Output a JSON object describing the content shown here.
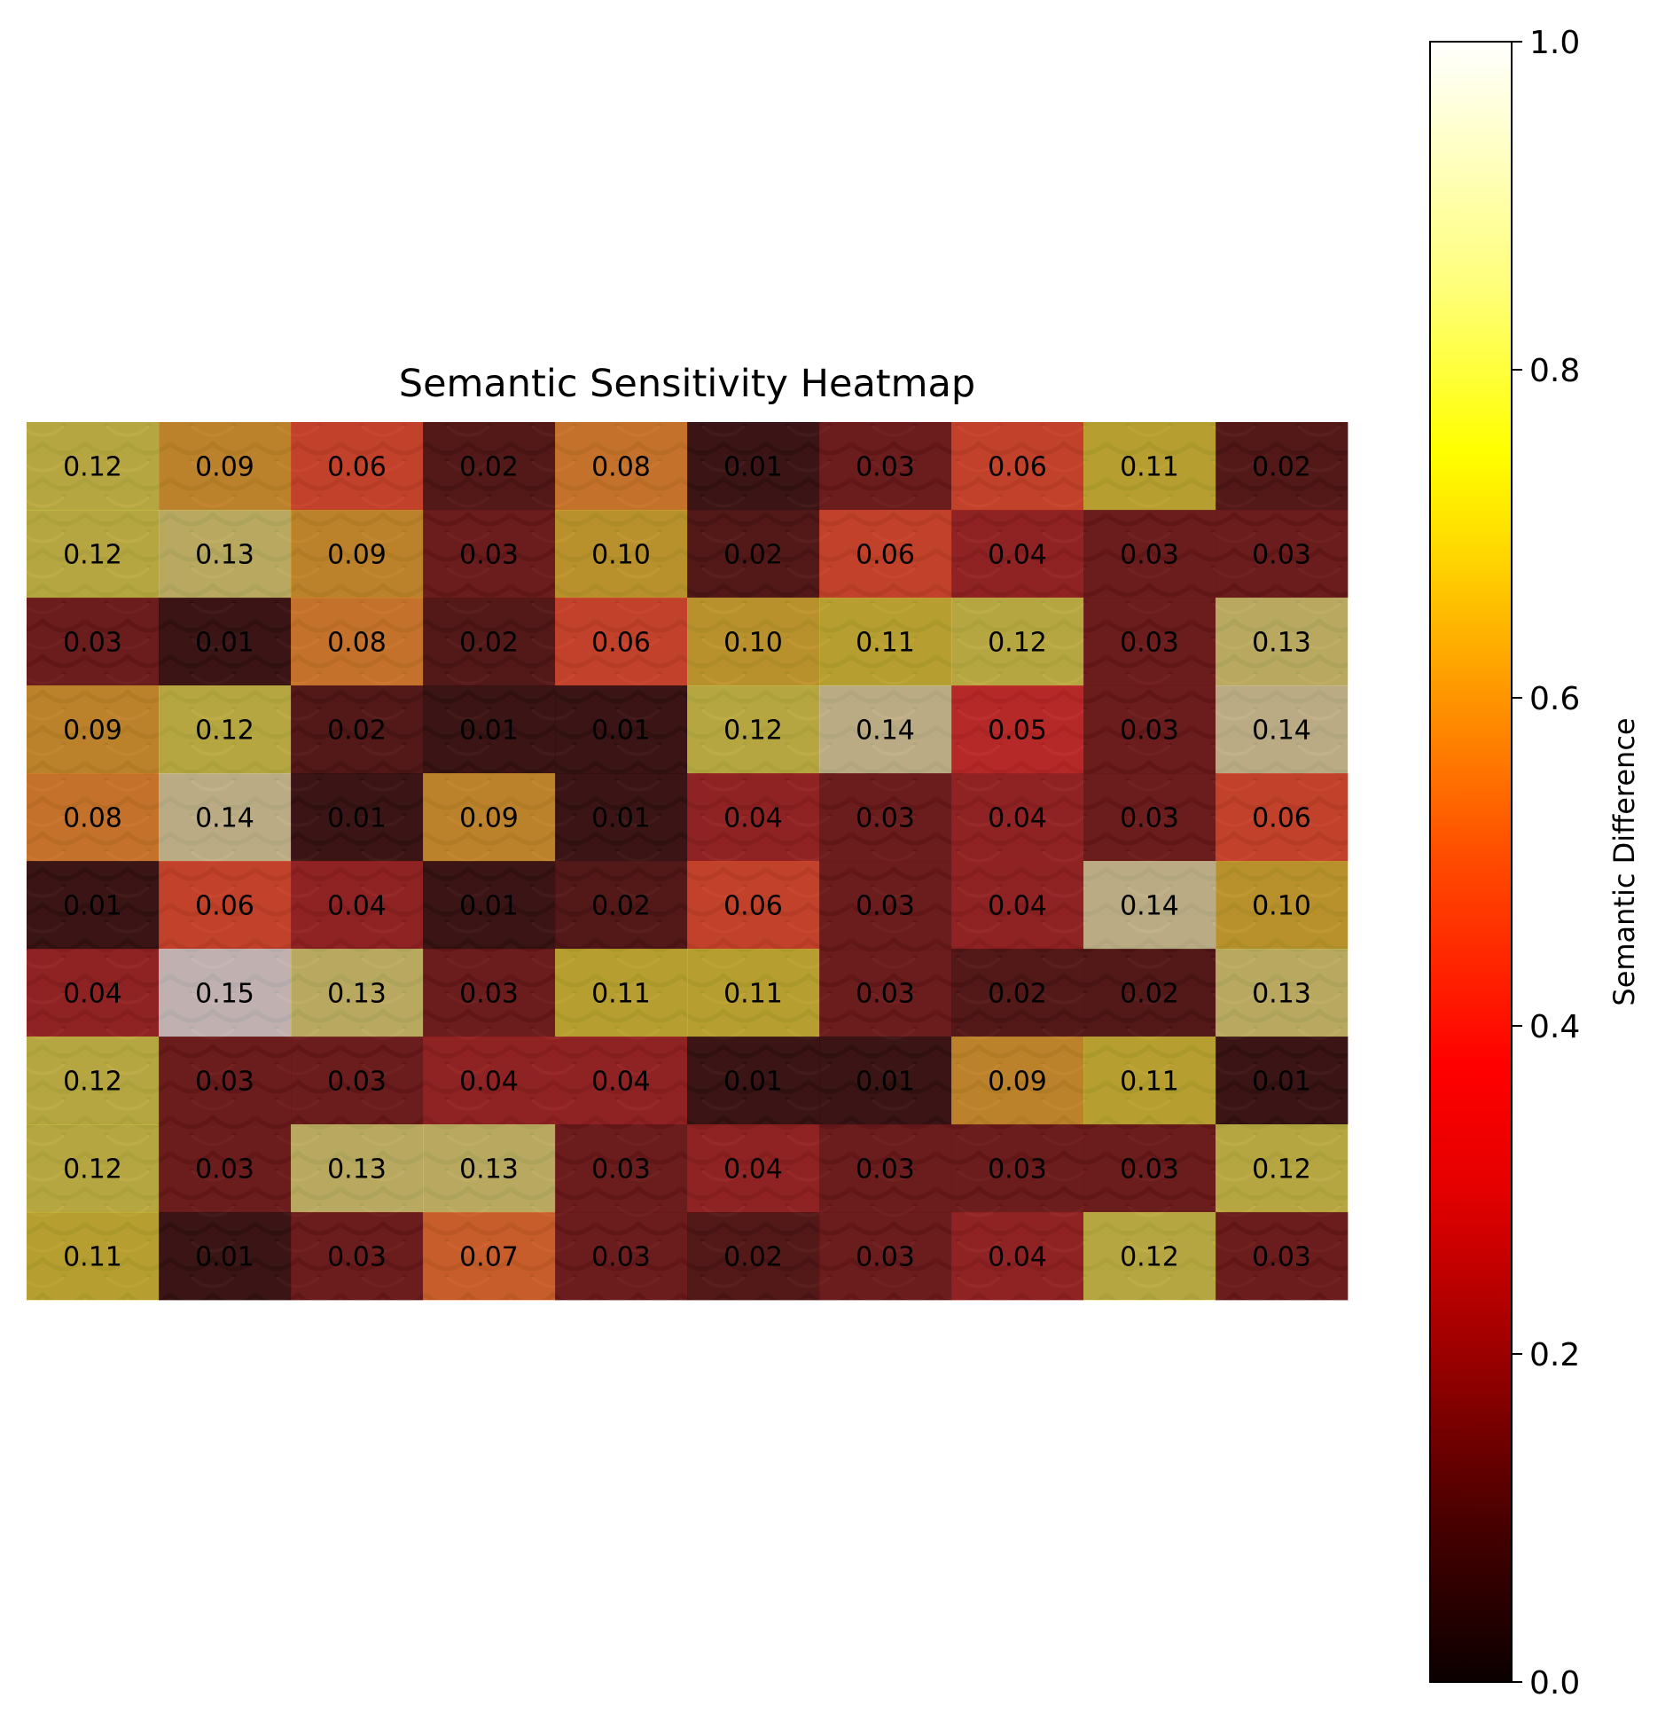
{
  "chart_data": {
    "type": "heatmap",
    "title": "Semantic Sensitivity Heatmap",
    "colormap": "hot",
    "rows": 10,
    "cols": 10,
    "values": [
      [
        0.12,
        0.09,
        0.06,
        0.02,
        0.08,
        0.01,
        0.03,
        0.06,
        0.11,
        0.02
      ],
      [
        0.12,
        0.13,
        0.09,
        0.03,
        0.1,
        0.02,
        0.06,
        0.04,
        0.03,
        0.03
      ],
      [
        0.03,
        0.01,
        0.08,
        0.02,
        0.06,
        0.1,
        0.11,
        0.12,
        0.03,
        0.13
      ],
      [
        0.09,
        0.12,
        0.02,
        0.01,
        0.01,
        0.12,
        0.14,
        0.05,
        0.03,
        0.14
      ],
      [
        0.08,
        0.14,
        0.01,
        0.09,
        0.01,
        0.04,
        0.03,
        0.04,
        0.03,
        0.06
      ],
      [
        0.01,
        0.06,
        0.04,
        0.01,
        0.02,
        0.06,
        0.03,
        0.04,
        0.14,
        0.1
      ],
      [
        0.04,
        0.15,
        0.13,
        0.03,
        0.11,
        0.11,
        0.03,
        0.02,
        0.02,
        0.13
      ],
      [
        0.12,
        0.03,
        0.03,
        0.04,
        0.04,
        0.01,
        0.01,
        0.09,
        0.11,
        0.01
      ],
      [
        0.12,
        0.03,
        0.13,
        0.13,
        0.03,
        0.04,
        0.03,
        0.03,
        0.03,
        0.12
      ],
      [
        0.11,
        0.01,
        0.03,
        0.07,
        0.03,
        0.02,
        0.03,
        0.04,
        0.12,
        0.03
      ]
    ],
    "colorbar": {
      "label": "Semantic Difference",
      "range": [
        0.0,
        1.0
      ],
      "ticks": [
        "0.0",
        "0.2",
        "0.4",
        "0.6",
        "0.8",
        "1.0"
      ]
    },
    "background": "photo of weathered red roof shingles with moss"
  }
}
